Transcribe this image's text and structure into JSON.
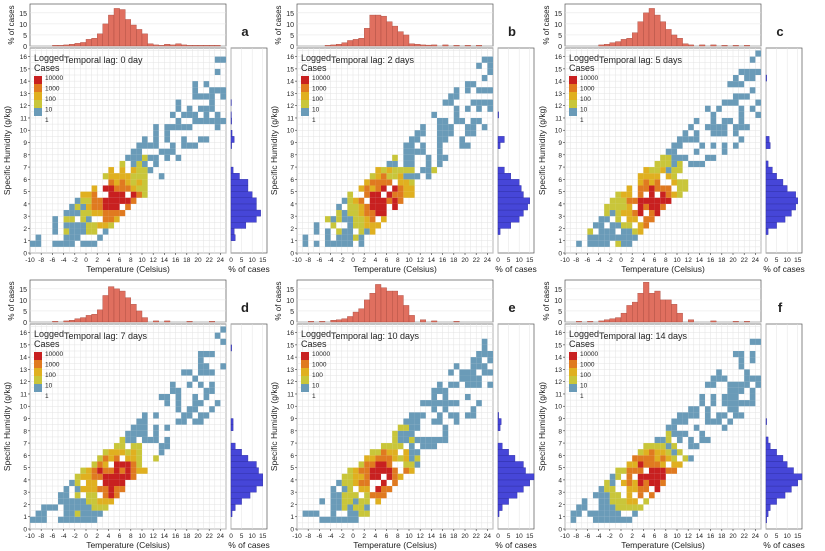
{
  "figure": {
    "colors": {
      "top_hist": "#e06f5f",
      "right_hist": "#4646d8",
      "scale": [
        "#6a9bb8",
        "#c9c63a",
        "#e0b020",
        "#e07a20",
        "#c82020"
      ],
      "panel_border": "#555555",
      "grid": "#e3e3e3"
    },
    "legend": {
      "title_line1": "Logged",
      "title_line2": "Cases",
      "ticks": [
        "10000",
        "1000",
        "100",
        "10",
        "1"
      ]
    },
    "axes": {
      "xlabel": "Temperature (Celsius)",
      "ylabel": "Specific Humidity (g/kg)",
      "top_hist_ylabel": "% of cases",
      "right_hist_xlabel": "% of cases",
      "x_ticks": [
        "-10",
        "-8",
        "-6",
        "-4",
        "-2",
        "0",
        "2",
        "4",
        "6",
        "8",
        "10",
        "12",
        "14",
        "16",
        "18",
        "20",
        "22",
        "24"
      ],
      "y_ticks": [
        "0",
        "1",
        "2",
        "3",
        "4",
        "5",
        "6",
        "7",
        "8",
        "9",
        "10",
        "11",
        "12",
        "13",
        "14",
        "15",
        "16"
      ],
      "top_hist_ticks": [
        "0",
        "5",
        "10",
        "15"
      ],
      "right_hist_ticks": [
        "0",
        "5",
        "10",
        "15"
      ]
    }
  },
  "chart_data": [
    {
      "type": "heatmap",
      "panel": "a",
      "annotation": "Temporal lag: 0 day",
      "xlim": [
        -10,
        25
      ],
      "ylim": [
        0,
        16.7
      ],
      "top_hist": {
        "x": [
          -6,
          -5,
          -4,
          -3,
          -2,
          -1,
          0,
          1,
          2,
          3,
          4,
          5,
          6,
          7,
          8,
          9,
          10,
          11,
          12,
          13,
          14,
          15,
          16,
          17,
          18,
          19,
          20,
          21,
          22,
          23
        ],
        "pct": [
          0.3,
          0.3,
          0.5,
          0.8,
          1.2,
          1.6,
          3,
          3.5,
          5.5,
          10,
          14,
          17,
          16.5,
          12,
          9.5,
          7.5,
          5.5,
          1,
          0.5,
          0.3,
          0.8,
          0.5,
          1,
          0.5,
          0.3,
          0.3,
          0.3,
          0.3,
          0.3,
          0.3
        ]
      },
      "right_hist": {
        "y": [
          1,
          1.5,
          2,
          2.5,
          3,
          3.5,
          4,
          4.5,
          5,
          5.5,
          6,
          6.5,
          8.5,
          9,
          9.5,
          10.5,
          11,
          12
        ],
        "pct": [
          2,
          1.5,
          7,
          12,
          14,
          12,
          12,
          10,
          8,
          8,
          4,
          1,
          0.3,
          1.5,
          0.5,
          0.3,
          0.2,
          0.2
        ]
      }
    },
    {
      "type": "heatmap",
      "panel": "b",
      "annotation": "Temporal lag: 2 days",
      "xlim": [
        -10,
        25
      ],
      "ylim": [
        0,
        16.7
      ],
      "top_hist": {
        "x": [
          -5,
          -4,
          -3,
          -2,
          -1,
          0,
          1,
          2,
          3,
          4,
          5,
          6,
          7,
          8,
          9,
          10,
          11,
          12,
          13,
          14,
          16,
          18,
          20,
          22
        ],
        "pct": [
          0.3,
          0.5,
          0.8,
          1.5,
          2.5,
          3,
          3.5,
          8,
          14,
          14,
          13.5,
          11,
          9,
          6.5,
          5,
          1,
          0.8,
          0.5,
          0.4,
          0.5,
          0.5,
          0.3,
          0.3,
          0.3
        ]
      },
      "right_hist": {
        "y": [
          1.5,
          2,
          2.5,
          3,
          3.5,
          4,
          4.5,
          5,
          5.5,
          6,
          6.5,
          8.5,
          9,
          11
        ],
        "pct": [
          1,
          6,
          10,
          12,
          14,
          15,
          12,
          11,
          10,
          6,
          3,
          1,
          3,
          0.3
        ]
      }
    },
    {
      "type": "heatmap",
      "panel": "c",
      "annotation": "Temporal lag: 5 days",
      "xlim": [
        -10,
        25
      ],
      "ylim": [
        0,
        16.7
      ],
      "top_hist": {
        "x": [
          -4,
          -3,
          -2,
          -1,
          0,
          1,
          2,
          3,
          4,
          5,
          6,
          7,
          8,
          9,
          10,
          11,
          12,
          14,
          16,
          18,
          20,
          22
        ],
        "pct": [
          0.5,
          0.8,
          1.5,
          2,
          3,
          3.5,
          6,
          11,
          15,
          17,
          14,
          11,
          7.5,
          5,
          3.5,
          1,
          0.5,
          0.5,
          0.5,
          0.3,
          0.3,
          0.3
        ]
      },
      "right_hist": {
        "y": [
          1.5,
          2,
          2.5,
          3,
          3.5,
          4,
          4.5,
          5,
          5.5,
          6,
          6.5,
          7,
          8.5,
          9,
          14
        ],
        "pct": [
          1,
          5,
          9,
          12,
          14,
          15,
          14,
          10,
          8,
          5,
          3,
          1,
          2,
          1.5,
          0.3
        ]
      }
    },
    {
      "type": "heatmap",
      "panel": "d",
      "annotation": "Temporal lag: 7 days",
      "xlim": [
        -10,
        25
      ],
      "ylim": [
        0,
        16.7
      ],
      "top_hist": {
        "x": [
          -6,
          -4,
          -3,
          -2,
          -1,
          0,
          1,
          2,
          3,
          4,
          5,
          6,
          7,
          8,
          9,
          10,
          12,
          14,
          18,
          22
        ],
        "pct": [
          0.3,
          0.5,
          0.8,
          1.5,
          2,
          3,
          3.5,
          5.5,
          12,
          16,
          15,
          14,
          11,
          8,
          5,
          2,
          0.5,
          0.5,
          0.3,
          0.3
        ]
      },
      "right_hist": {
        "y": [
          1,
          1.5,
          2,
          2.5,
          3,
          3.5,
          4,
          4.5,
          5,
          5.5,
          6,
          6.5,
          8,
          8.5,
          14.5
        ],
        "pct": [
          0.5,
          2,
          5,
          9,
          12,
          15,
          15,
          13,
          12,
          8,
          5,
          2,
          1,
          1,
          0.3
        ]
      }
    },
    {
      "type": "heatmap",
      "panel": "e",
      "annotation": "Temporal lag: 10 days",
      "xlim": [
        -10,
        25
      ],
      "ylim": [
        0,
        16.7
      ],
      "top_hist": {
        "x": [
          -8,
          -6,
          -4,
          -3,
          -2,
          -1,
          0,
          1,
          2,
          3,
          4,
          5,
          6,
          7,
          8,
          9,
          10,
          12,
          14,
          18
        ],
        "pct": [
          0.3,
          0.3,
          0.8,
          1,
          1.5,
          2.5,
          4.5,
          6,
          10,
          13,
          17,
          15.5,
          14,
          14,
          12,
          7.5,
          3,
          1,
          0.5,
          0.3
        ]
      },
      "right_hist": {
        "y": [
          1,
          1.5,
          2,
          2.5,
          3,
          3.5,
          4,
          4.5,
          5,
          5.5,
          6,
          6.5,
          8,
          8.5,
          9
        ],
        "pct": [
          0.5,
          2,
          5,
          9,
          12,
          15,
          17,
          13,
          12,
          8,
          5,
          2,
          1,
          1.5,
          0.3
        ]
      }
    },
    {
      "type": "heatmap",
      "panel": "f",
      "annotation": "Temporal lag: 14 days",
      "xlim": [
        -10,
        25
      ],
      "ylim": [
        0,
        16.7
      ],
      "top_hist": {
        "x": [
          -8,
          -6,
          -4,
          -3,
          -2,
          -1,
          0,
          1,
          2,
          3,
          4,
          5,
          6,
          7,
          8,
          9,
          10,
          12,
          16,
          20,
          22
        ],
        "pct": [
          0.3,
          0.3,
          0.5,
          1,
          1.5,
          2,
          4,
          7.5,
          9,
          13,
          18,
          13,
          14,
          10,
          10,
          8,
          4,
          1,
          0.5,
          0.3,
          0.3
        ]
      },
      "right_hist": {
        "y": [
          0.5,
          1,
          1.5,
          2,
          2.5,
          3,
          3.5,
          4,
          4.5,
          5,
          5.5,
          6,
          6.5,
          7,
          8.5
        ],
        "pct": [
          0.3,
          1,
          2,
          5,
          9,
          12,
          15,
          17,
          13,
          10,
          8,
          5,
          2,
          1,
          0.3
        ]
      }
    }
  ]
}
